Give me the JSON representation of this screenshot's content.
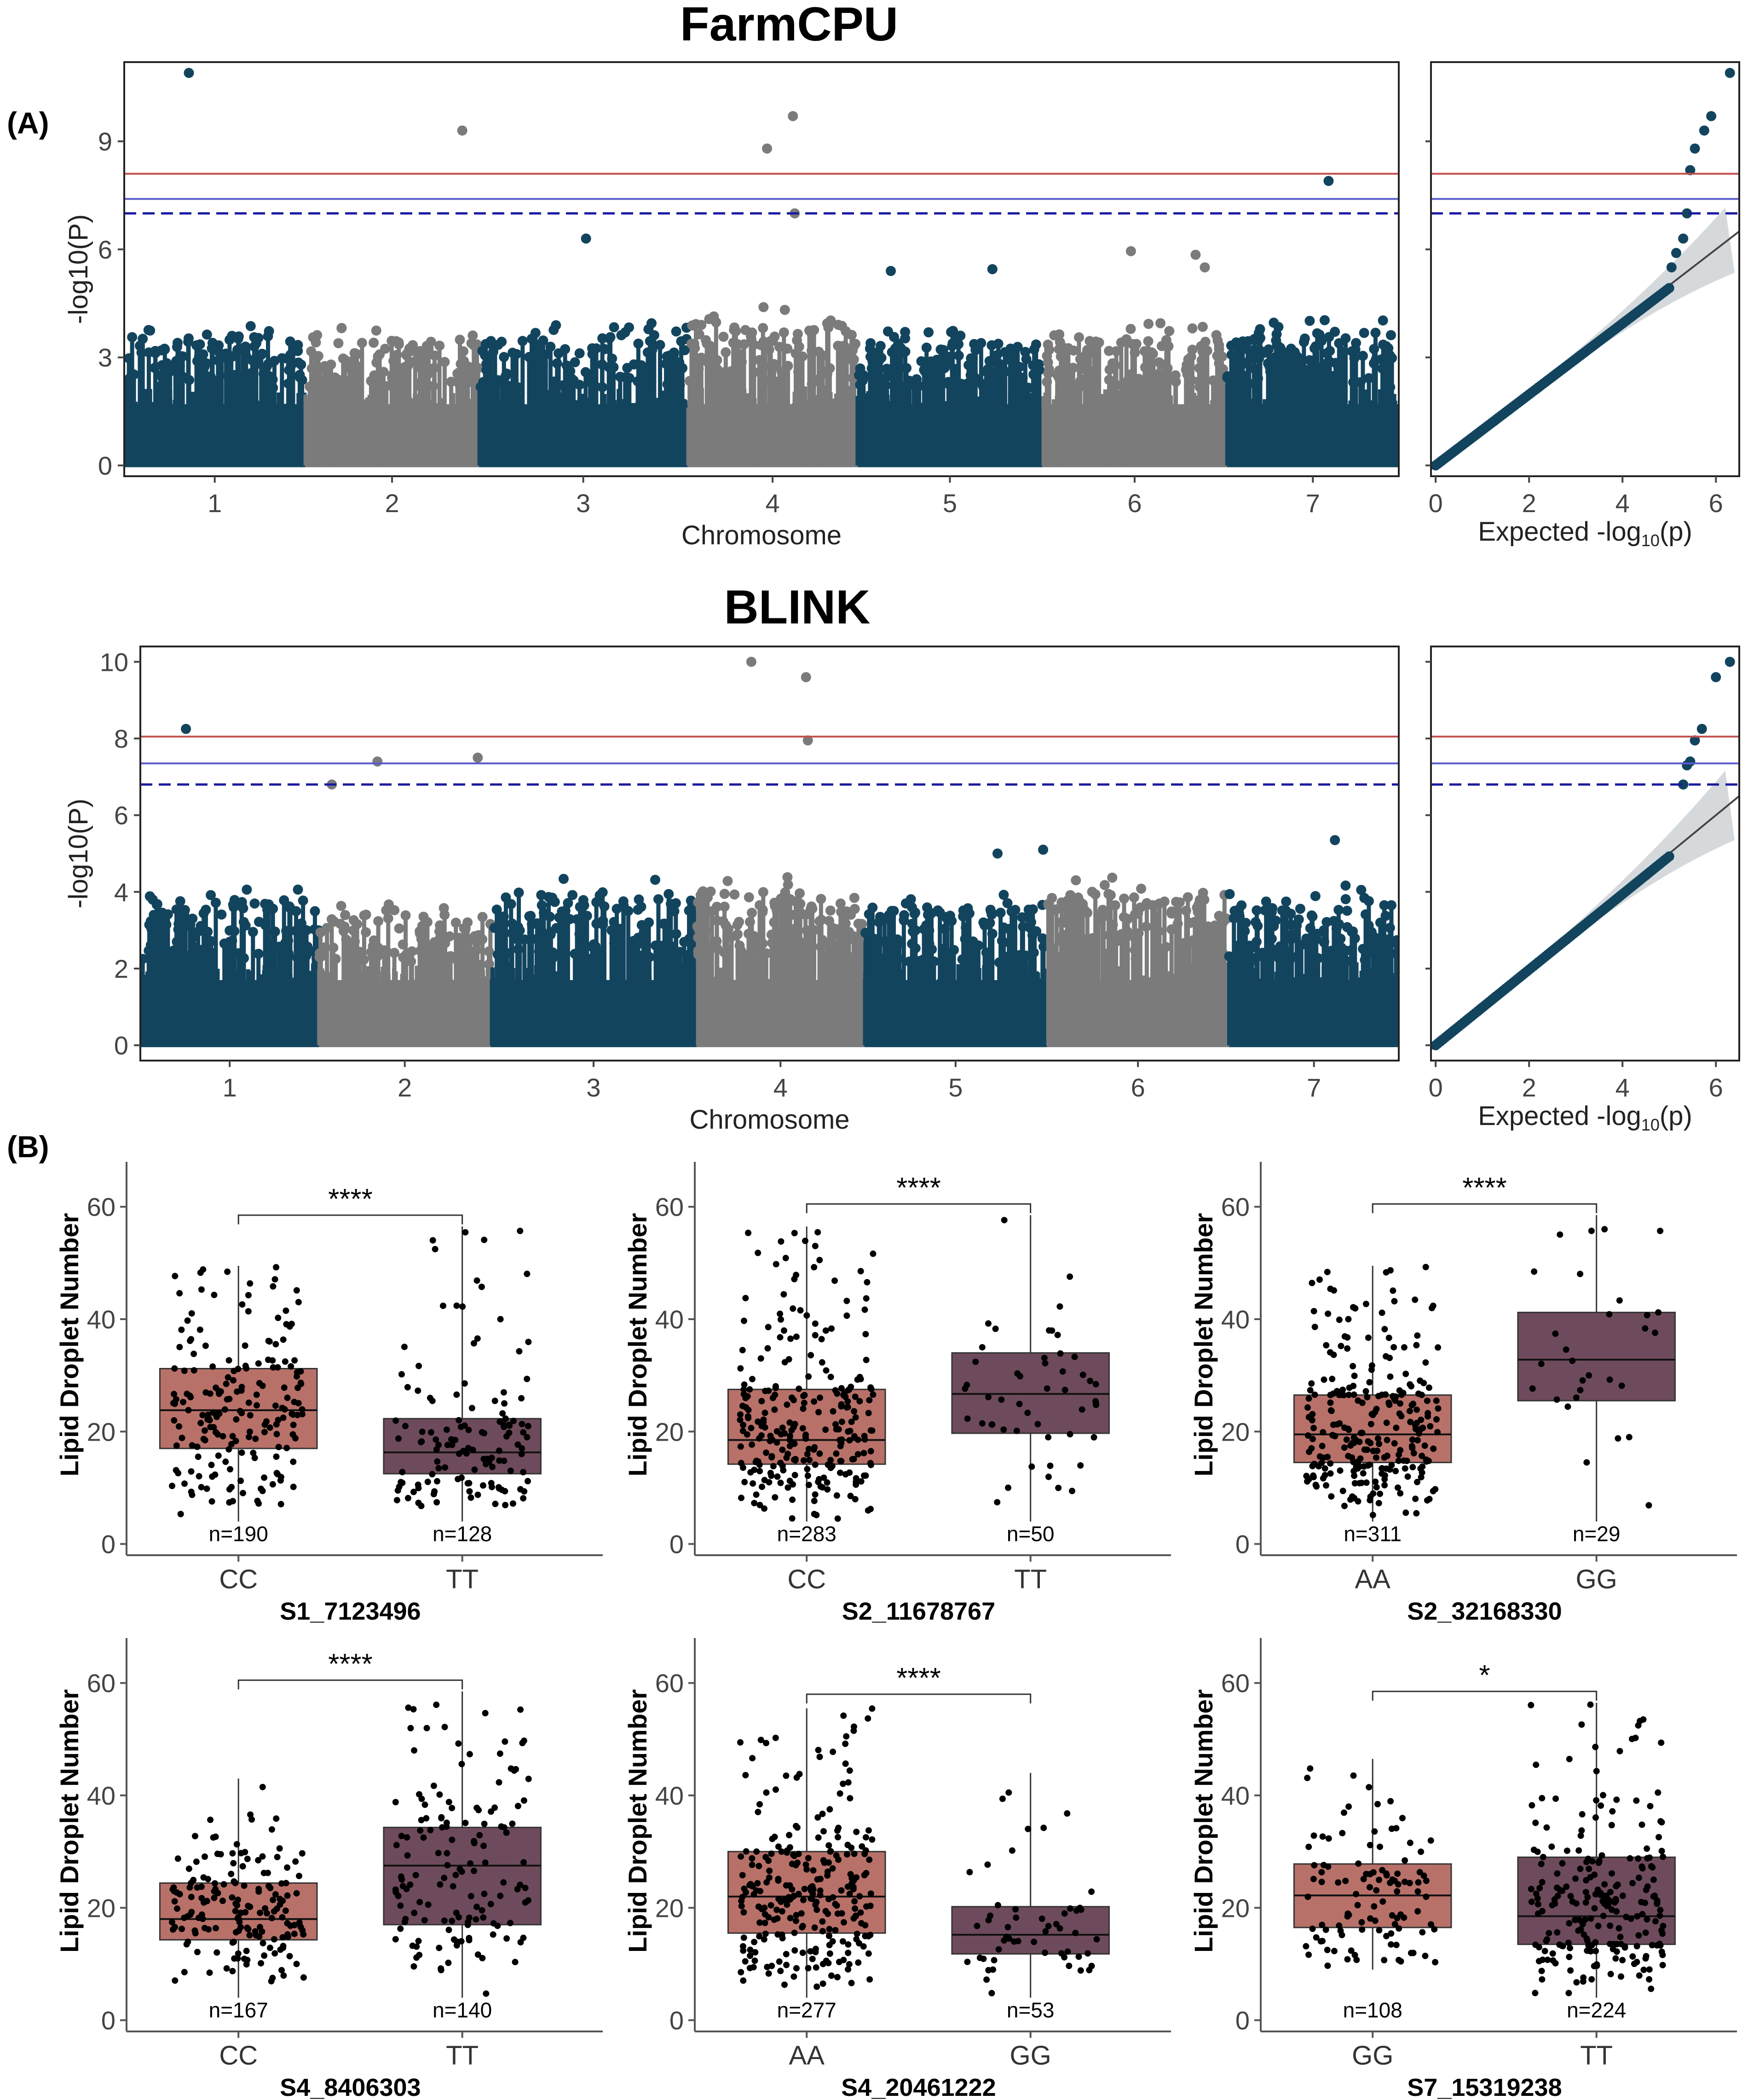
{
  "figure": {
    "panel_a_label": "(A)",
    "panel_b_label": "(B)"
  },
  "colors": {
    "dark": "#12445e",
    "grey": "#7b7b7b",
    "sig_red": "#c0504d",
    "sig_blue": "#5a5acd",
    "sig_dashed": "#1a1aa0",
    "box_light": "#b87169",
    "box_dark": "#6e4b5c",
    "ci": "#d5d9dc"
  },
  "chart_data": [
    {
      "type": "scatter",
      "subtype": "manhattan",
      "title": "FarmCPU",
      "xlabel": "Chromosome",
      "ylabel": "-log10(P)",
      "x_ticks": [
        "1",
        "2",
        "3",
        "4",
        "5",
        "6",
        "7"
      ],
      "y_ticks": [
        0,
        3,
        6,
        9
      ],
      "ylim": [
        -0.3,
        11.2
      ],
      "chromosomes": [
        {
          "name": "1",
          "start": 0.5,
          "end": 1.48,
          "bg_max": 3.6
        },
        {
          "name": "2",
          "start": 1.48,
          "end": 2.42,
          "bg_max": 3.5
        },
        {
          "name": "3",
          "start": 2.42,
          "end": 3.55,
          "bg_max": 3.7
        },
        {
          "name": "4",
          "start": 3.55,
          "end": 4.47,
          "bg_max": 4.0
        },
        {
          "name": "5",
          "start": 4.47,
          "end": 5.47,
          "bg_max": 3.4
        },
        {
          "name": "6",
          "start": 5.47,
          "end": 6.47,
          "bg_max": 3.6
        },
        {
          "name": "7",
          "start": 6.47,
          "end": 7.4,
          "bg_max": 3.7
        }
      ],
      "threshold_lines": {
        "red": 8.1,
        "blue": 7.4,
        "dashed": 7.0
      },
      "top_snps": [
        {
          "chr": 1,
          "x": 0.85,
          "y": 10.9
        },
        {
          "chr": 2,
          "x": 2.33,
          "y": 9.3
        },
        {
          "chr": 3,
          "x": 3.0,
          "y": 6.3
        },
        {
          "chr": 4,
          "x": 3.98,
          "y": 8.8
        },
        {
          "chr": 4,
          "x": 4.12,
          "y": 9.7
        },
        {
          "chr": 4,
          "x": 4.13,
          "y": 7.0
        },
        {
          "chr": 5,
          "x": 4.65,
          "y": 5.4
        },
        {
          "chr": 5,
          "x": 5.2,
          "y": 5.45
        },
        {
          "chr": 6,
          "x": 5.95,
          "y": 5.95
        },
        {
          "chr": 6,
          "x": 6.3,
          "y": 5.85
        },
        {
          "chr": 6,
          "x": 6.35,
          "y": 5.5
        },
        {
          "chr": 7,
          "x": 7.02,
          "y": 7.9
        }
      ],
      "qq": {
        "xlabel": "Expected -log10(p)",
        "x_ticks": [
          0,
          2,
          4,
          6
        ],
        "xlim": [
          -0.1,
          6.5
        ],
        "tail_points": [
          [
            5.05,
            5.5
          ],
          [
            5.15,
            5.9
          ],
          [
            5.3,
            6.3
          ],
          [
            5.38,
            7.0
          ],
          [
            5.45,
            8.2
          ],
          [
            5.55,
            8.8
          ],
          [
            5.75,
            9.3
          ],
          [
            5.9,
            9.7
          ],
          [
            6.3,
            10.9
          ]
        ]
      }
    },
    {
      "type": "scatter",
      "subtype": "manhattan",
      "title": "BLINK",
      "xlabel": "Chromosome",
      "ylabel": "-log10(P)",
      "x_ticks": [
        "1",
        "2",
        "3",
        "4",
        "5",
        "6",
        "7"
      ],
      "y_ticks": [
        0,
        2,
        4,
        6,
        8,
        10
      ],
      "ylim": [
        -0.4,
        10.4
      ],
      "chromosomes": [
        {
          "name": "1",
          "start": 0.5,
          "end": 1.48,
          "bg_max": 3.8
        },
        {
          "name": "2",
          "start": 1.48,
          "end": 2.42,
          "bg_max": 3.4
        },
        {
          "name": "3",
          "start": 2.42,
          "end": 3.55,
          "bg_max": 4.0
        },
        {
          "name": "4",
          "start": 3.55,
          "end": 4.47,
          "bg_max": 4.0
        },
        {
          "name": "5",
          "start": 4.47,
          "end": 5.47,
          "bg_max": 3.6
        },
        {
          "name": "6",
          "start": 5.47,
          "end": 6.47,
          "bg_max": 4.0
        },
        {
          "name": "7",
          "start": 6.47,
          "end": 7.4,
          "bg_max": 3.8
        }
      ],
      "threshold_lines": {
        "red": 8.05,
        "blue": 7.35,
        "dashed": 6.8
      },
      "top_snps": [
        {
          "chr": 1,
          "x": 0.75,
          "y": 8.25
        },
        {
          "chr": 2,
          "x": 1.55,
          "y": 6.8
        },
        {
          "chr": 2,
          "x": 1.8,
          "y": 7.4
        },
        {
          "chr": 2,
          "x": 2.35,
          "y": 7.5
        },
        {
          "chr": 4,
          "x": 3.85,
          "y": 10.0
        },
        {
          "chr": 4,
          "x": 4.15,
          "y": 9.6
        },
        {
          "chr": 4,
          "x": 4.16,
          "y": 7.95
        },
        {
          "chr": 5,
          "x": 5.2,
          "y": 5.0
        },
        {
          "chr": 5,
          "x": 5.45,
          "y": 5.1
        },
        {
          "chr": 7,
          "x": 7.05,
          "y": 5.35
        }
      ],
      "qq": {
        "xlabel": "Expected -log10(p)",
        "x_ticks": [
          0,
          2,
          4,
          6
        ],
        "xlim": [
          -0.1,
          6.5
        ],
        "tail_points": [
          [
            5.3,
            6.8
          ],
          [
            5.38,
            7.3
          ],
          [
            5.45,
            7.4
          ],
          [
            5.55,
            7.95
          ],
          [
            5.7,
            8.25
          ],
          [
            6.0,
            9.6
          ],
          [
            6.3,
            10.0
          ]
        ]
      }
    },
    {
      "type": "box",
      "title": "S1_7123496",
      "ylabel": "Lipid Droplet Number",
      "y_ticks": [
        0,
        20,
        40,
        60
      ],
      "ylim": [
        -2,
        68
      ],
      "significance": "****",
      "groups": [
        {
          "label": "CC",
          "n_label": "n=190",
          "n": 190,
          "q1": 17,
          "median": 23.8,
          "q3": 31.2,
          "lo": 4,
          "hi": 49.5
        },
        {
          "label": "TT",
          "n_label": "n=128",
          "n": 128,
          "q1": 12.5,
          "median": 16.3,
          "q3": 22.3,
          "lo": 4,
          "hi": 56.5
        }
      ]
    },
    {
      "type": "box",
      "title": "S2_11678767",
      "ylabel": "Lipid Droplet Number",
      "y_ticks": [
        0,
        20,
        40,
        60
      ],
      "ylim": [
        -2,
        68
      ],
      "significance": "****",
      "groups": [
        {
          "label": "CC",
          "n_label": "n=283",
          "n": 283,
          "q1": 14.2,
          "median": 18.5,
          "q3": 27.5,
          "lo": 4,
          "hi": 56.5
        },
        {
          "label": "TT",
          "n_label": "n=50",
          "n": 50,
          "q1": 19.7,
          "median": 26.7,
          "q3": 34.0,
          "lo": 4,
          "hi": 58.5
        }
      ]
    },
    {
      "type": "box",
      "title": "S2_32168330",
      "ylabel": "Lipid Droplet Number",
      "y_ticks": [
        0,
        20,
        40,
        60
      ],
      "ylim": [
        -2,
        68
      ],
      "significance": "****",
      "groups": [
        {
          "label": "AA",
          "n_label": "n=311",
          "n": 311,
          "q1": 14.5,
          "median": 19.5,
          "q3": 26.5,
          "lo": 4,
          "hi": 49.5
        },
        {
          "label": "GG",
          "n_label": "n=29",
          "n": 29,
          "q1": 25.5,
          "median": 32.8,
          "q3": 41.2,
          "lo": 4,
          "hi": 58.5
        }
      ]
    },
    {
      "type": "box",
      "title": "S4_8406303",
      "ylabel": "Lipid Droplet Number",
      "y_ticks": [
        0,
        20,
        40,
        60
      ],
      "ylim": [
        -2,
        68
      ],
      "significance": "****",
      "groups": [
        {
          "label": "CC",
          "n_label": "n=167",
          "n": 167,
          "q1": 14.3,
          "median": 18.0,
          "q3": 24.4,
          "lo": 4,
          "hi": 43
        },
        {
          "label": "TT",
          "n_label": "n=140",
          "n": 140,
          "q1": 17.0,
          "median": 27.5,
          "q3": 34.3,
          "lo": 4,
          "hi": 58.5
        }
      ]
    },
    {
      "type": "box",
      "title": "S4_20461222",
      "ylabel": "Lipid Droplet Number",
      "y_ticks": [
        0,
        20,
        40,
        60
      ],
      "ylim": [
        -2,
        68
      ],
      "significance": "****",
      "groups": [
        {
          "label": "AA",
          "n_label": "n=277",
          "n": 277,
          "q1": 15.5,
          "median": 22.0,
          "q3": 30.0,
          "lo": 4,
          "hi": 55.5
        },
        {
          "label": "GG",
          "n_label": "n=53",
          "n": 53,
          "q1": 11.8,
          "median": 15.2,
          "q3": 20.2,
          "lo": 4,
          "hi": 44
        }
      ]
    },
    {
      "type": "box",
      "title": "S7_15319238",
      "ylabel": "Lipid Droplet Number",
      "y_ticks": [
        0,
        20,
        40,
        60
      ],
      "ylim": [
        -2,
        68
      ],
      "significance": "*",
      "groups": [
        {
          "label": "GG",
          "n_label": "n=108",
          "n": 108,
          "q1": 16.5,
          "median": 22.2,
          "q3": 27.8,
          "lo": 9,
          "hi": 46.5
        },
        {
          "label": "TT",
          "n_label": "n=224",
          "n": 224,
          "q1": 13.5,
          "median": 18.5,
          "q3": 29.0,
          "lo": 4,
          "hi": 56.5
        }
      ]
    }
  ]
}
